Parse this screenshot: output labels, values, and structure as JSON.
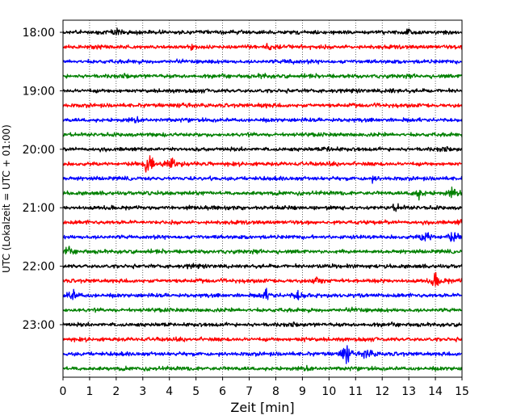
{
  "chart_data": {
    "type": "line",
    "title": "",
    "xlabel": "Zeit  [min]",
    "ylabel": "UTC (Lokalzeit = UTC + 01:00)",
    "xlim": [
      0,
      15
    ],
    "x_ticks": [
      "0",
      "1",
      "2",
      "3",
      "4",
      "5",
      "6",
      "7",
      "8",
      "9",
      "10",
      "11",
      "12",
      "13",
      "14",
      "15"
    ],
    "y_tick_labels": [
      "18:00",
      "19:00",
      "20:00",
      "21:00",
      "22:00",
      "23:00"
    ],
    "grid": "vertical dotted lines at each minute",
    "trace_interval_minutes": 15,
    "colors": [
      "#000000",
      "#ff0000",
      "#0000ff",
      "#008000"
    ],
    "traces": [
      {
        "start": "18:00",
        "color": "#000000",
        "events": [
          {
            "t": 2.0,
            "a": 1.0
          },
          {
            "t": 13.0,
            "a": 0.7
          }
        ]
      },
      {
        "start": "18:15",
        "color": "#ff0000",
        "events": [
          {
            "t": 7.7,
            "a": 1.4
          },
          {
            "t": 4.8,
            "a": 0.6
          }
        ]
      },
      {
        "start": "18:30",
        "color": "#0000ff",
        "events": [
          {
            "t": 8.5,
            "a": 0.7
          }
        ]
      },
      {
        "start": "18:45",
        "color": "#008000",
        "events": [
          {
            "t": 2.3,
            "a": 0.5
          },
          {
            "t": 7.5,
            "a": 0.5
          }
        ]
      },
      {
        "start": "19:00",
        "color": "#000000",
        "events": [
          {
            "t": 12.3,
            "a": 0.5
          }
        ]
      },
      {
        "start": "19:15",
        "color": "#ff0000",
        "events": [
          {
            "t": 4.6,
            "a": 0.5
          },
          {
            "t": 7.5,
            "a": 0.4
          }
        ]
      },
      {
        "start": "19:30",
        "color": "#0000ff",
        "events": [
          {
            "t": 2.7,
            "a": 0.6
          }
        ]
      },
      {
        "start": "19:45",
        "color": "#008000",
        "events": []
      },
      {
        "start": "20:00",
        "color": "#000000",
        "events": [
          {
            "t": 10.0,
            "a": 0.8
          },
          {
            "t": 14.3,
            "a": 0.7
          }
        ]
      },
      {
        "start": "20:15",
        "color": "#ff0000",
        "events": [
          {
            "t": 3.2,
            "a": 2.6
          },
          {
            "t": 4.0,
            "a": 1.8
          }
        ]
      },
      {
        "start": "20:30",
        "color": "#0000ff",
        "events": [
          {
            "t": 11.6,
            "a": 0.7
          }
        ]
      },
      {
        "start": "20:45",
        "color": "#008000",
        "events": [
          {
            "t": 13.3,
            "a": 1.8
          },
          {
            "t": 14.6,
            "a": 1.4
          }
        ]
      },
      {
        "start": "21:00",
        "color": "#000000",
        "events": [
          {
            "t": 12.5,
            "a": 1.0
          },
          {
            "t": 5.5,
            "a": 0.5
          }
        ]
      },
      {
        "start": "21:15",
        "color": "#ff0000",
        "events": [
          {
            "t": 15.0,
            "a": 1.0
          }
        ]
      },
      {
        "start": "21:30",
        "color": "#0000ff",
        "events": [
          {
            "t": 13.6,
            "a": 2.1
          },
          {
            "t": 14.6,
            "a": 1.5
          }
        ]
      },
      {
        "start": "21:45",
        "color": "#008000",
        "events": [
          {
            "t": 0.1,
            "a": 1.1
          }
        ]
      },
      {
        "start": "22:00",
        "color": "#000000",
        "events": [
          {
            "t": 4.8,
            "a": 0.4
          }
        ]
      },
      {
        "start": "22:15",
        "color": "#ff0000",
        "events": [
          {
            "t": 9.5,
            "a": 1.2
          },
          {
            "t": 14.0,
            "a": 2.3
          }
        ]
      },
      {
        "start": "22:30",
        "color": "#0000ff",
        "events": [
          {
            "t": 0.3,
            "a": 2.0
          },
          {
            "t": 7.6,
            "a": 1.6
          },
          {
            "t": 8.8,
            "a": 1.7
          }
        ]
      },
      {
        "start": "22:45",
        "color": "#008000",
        "events": [
          {
            "t": 11.0,
            "a": 0.4
          }
        ]
      },
      {
        "start": "23:00",
        "color": "#000000",
        "events": [
          {
            "t": 8.6,
            "a": 0.5
          }
        ]
      },
      {
        "start": "23:15",
        "color": "#ff0000",
        "events": [
          {
            "t": 9.0,
            "a": 0.5
          }
        ]
      },
      {
        "start": "23:30",
        "color": "#0000ff",
        "events": [
          {
            "t": 10.6,
            "a": 3.2
          },
          {
            "t": 11.4,
            "a": 1.6
          }
        ]
      },
      {
        "start": "23:45",
        "color": "#008000",
        "events": [
          {
            "t": 9.2,
            "a": 0.5
          }
        ]
      }
    ]
  }
}
